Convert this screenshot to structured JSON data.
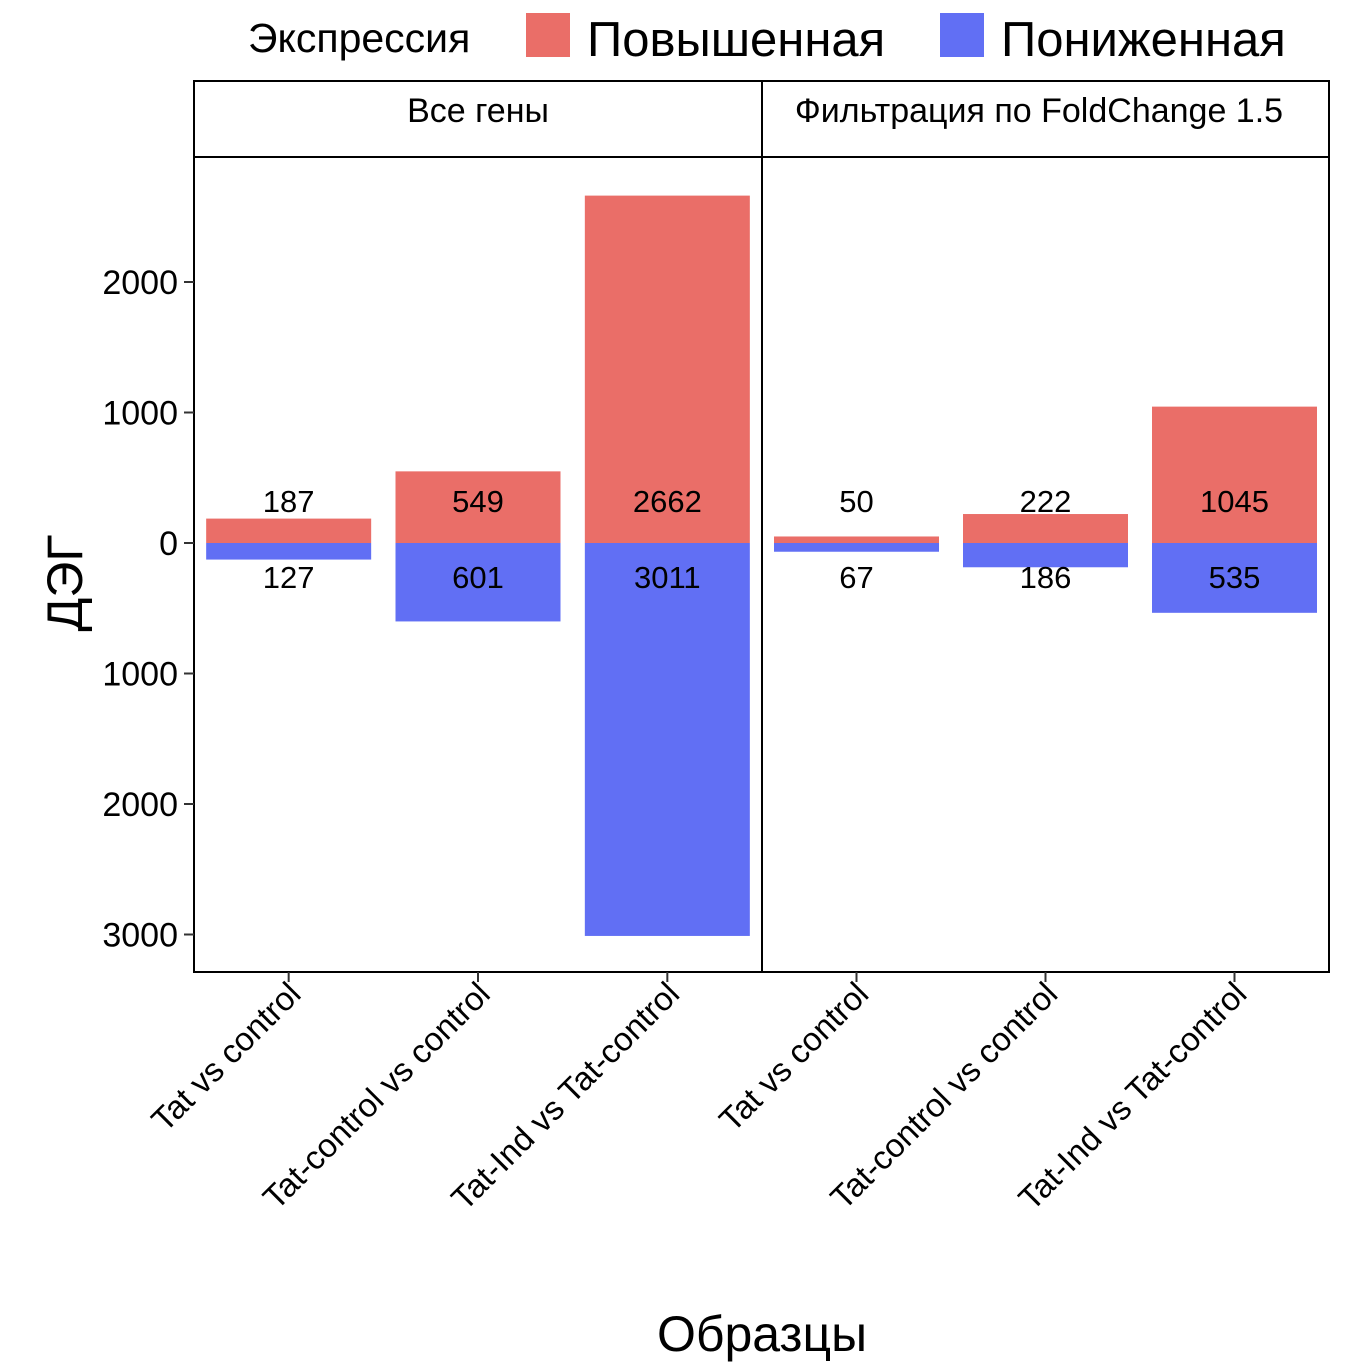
{
  "chart_data": {
    "type": "bar",
    "stacked": "diverging",
    "xlabel": "Образцы",
    "ylabel": "ДЭГ",
    "ylim": [
      -3270,
      2920
    ],
    "yticks": [
      2000,
      1000,
      0,
      -1000,
      -2000,
      -3000
    ],
    "ytick_labels": [
      "2000",
      "1000",
      "0",
      "1000",
      "2000",
      "3000"
    ],
    "legend": {
      "title": "Экспрессия",
      "position": "top",
      "entries": [
        {
          "label": "Повышенная",
          "color": "#EA6E68"
        },
        {
          "label": "Пониженная",
          "color": "#616FF4"
        }
      ]
    },
    "panels": [
      {
        "title": "Все гены",
        "categories": [
          "Tat vs control",
          "Tat-control vs control",
          "Tat-Ind vs Tat-control"
        ],
        "series": [
          {
            "name": "Повышенная",
            "color": "#EA6E68",
            "values": [
              187,
              549,
              2662
            ]
          },
          {
            "name": "Пониженная",
            "color": "#616FF4",
            "values": [
              -127,
              -601,
              -3011
            ]
          }
        ],
        "labels_up": [
          "187",
          "549",
          "2662"
        ],
        "labels_down": [
          "127",
          "601",
          "3011"
        ]
      },
      {
        "title": "Фильтрация по FoldChange 1.5",
        "categories": [
          "Tat vs control",
          "Tat-control vs control",
          "Tat-Ind vs Tat-control"
        ],
        "series": [
          {
            "name": "Повышенная",
            "color": "#EA6E68",
            "values": [
              50,
              222,
              1045
            ]
          },
          {
            "name": "Пониженная",
            "color": "#616FF4",
            "values": [
              -67,
              -186,
              -535
            ]
          }
        ],
        "labels_up": [
          "50",
          "222",
          "1045"
        ],
        "labels_down": [
          "67",
          "186",
          "535"
        ]
      }
    ]
  }
}
